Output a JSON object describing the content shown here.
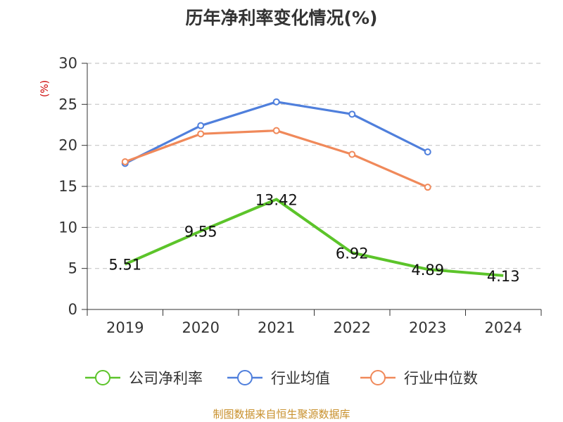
{
  "chart_data": {
    "type": "line",
    "title": "历年净利率变化情况(%)",
    "ylabel": "(%)",
    "categories": [
      "2019",
      "2020",
      "2021",
      "2022",
      "2023",
      "2024"
    ],
    "y_ticks": [
      "0",
      "5",
      "10",
      "15",
      "20",
      "25",
      "30"
    ],
    "ylim": [
      0,
      30
    ],
    "grid": true,
    "legend_position": "bottom",
    "series": [
      {
        "name": "公司净利率",
        "color": "#5cc42a",
        "values": [
          5.51,
          9.55,
          13.42,
          6.92,
          4.89,
          4.13
        ],
        "labels": [
          "5.51",
          "9.55",
          "13.42",
          "6.92",
          "4.89",
          "4.13"
        ]
      },
      {
        "name": "行业均值",
        "color": "#4f7fdc",
        "values": [
          17.8,
          22.4,
          25.3,
          23.8,
          19.2,
          null
        ]
      },
      {
        "name": "行业中位数",
        "color": "#f0895a",
        "values": [
          18.0,
          21.4,
          21.8,
          18.9,
          14.9,
          null
        ]
      }
    ]
  },
  "source_note": "制图数据来自恒生聚源数据库"
}
